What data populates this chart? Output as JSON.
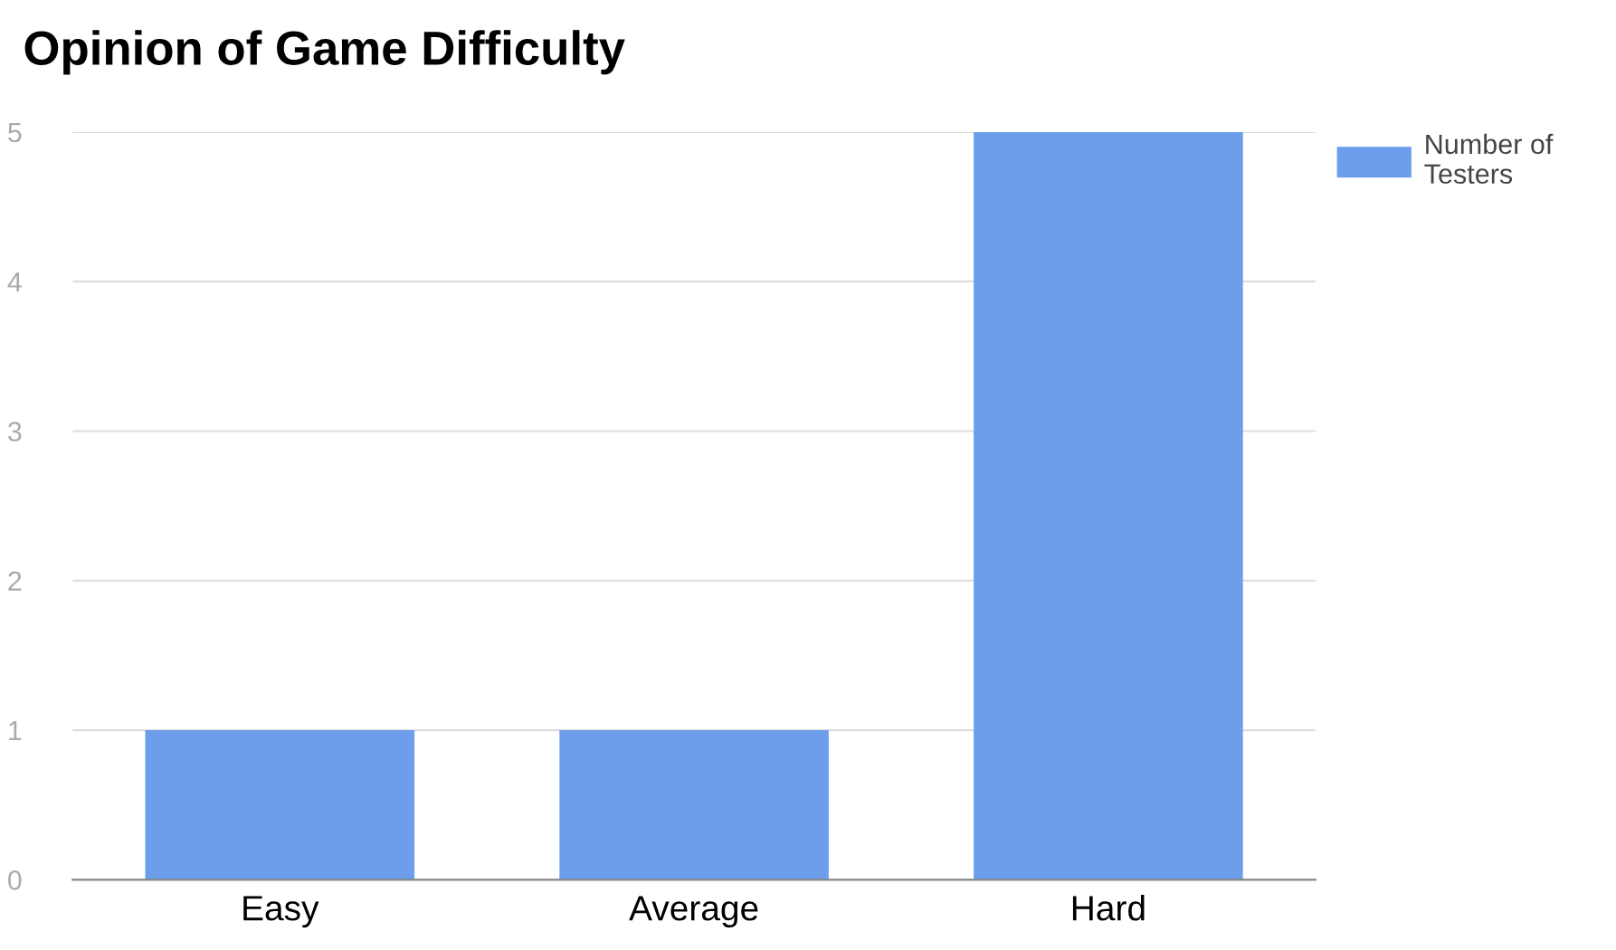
{
  "chart_data": {
    "type": "bar",
    "title": "Opinion of Game Difficulty",
    "categories": [
      "Easy",
      "Average",
      "Hard"
    ],
    "series": [
      {
        "name": "Number of\nTesters",
        "color": "#6d9eeb",
        "values": [
          1,
          1,
          5
        ]
      }
    ],
    "ylim": [
      0,
      5
    ],
    "yticks": [
      0,
      1,
      2,
      3,
      4,
      5
    ],
    "grid": "y",
    "legend": "top right"
  }
}
